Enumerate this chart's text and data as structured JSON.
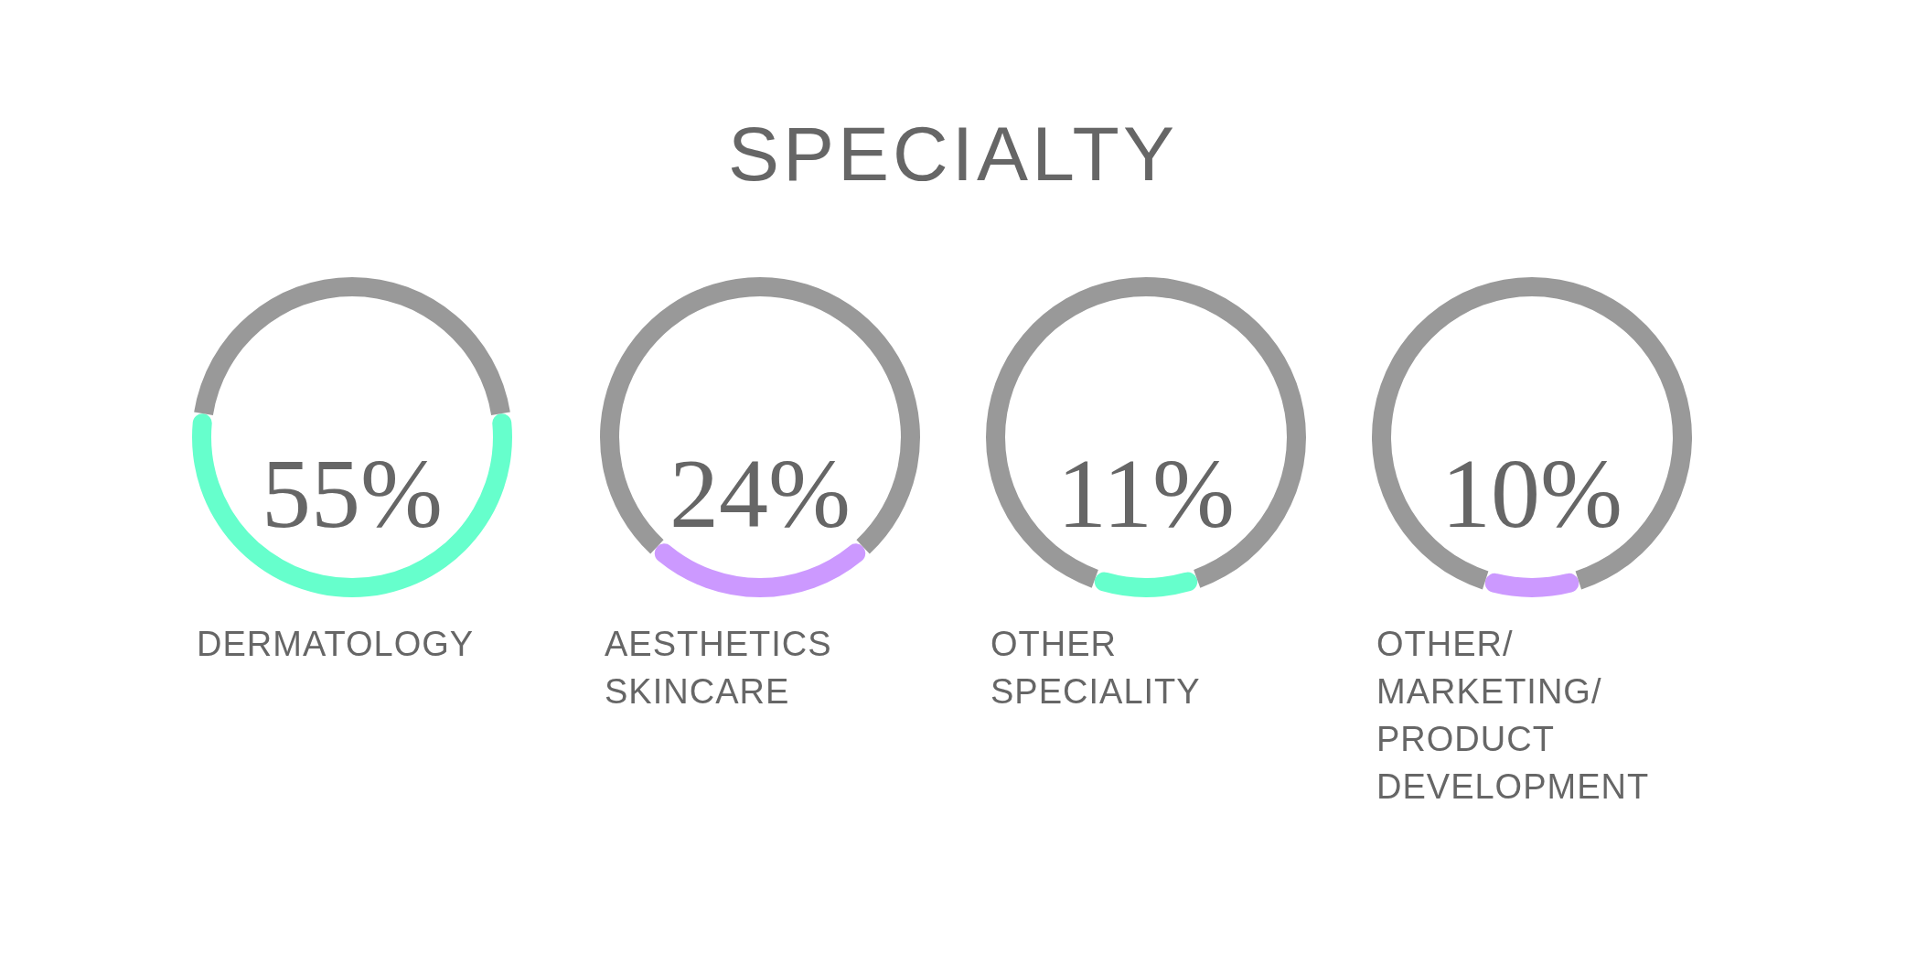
{
  "chart_data": [
    {
      "type": "donut",
      "title": "SPECIALTY",
      "categories": [
        "DERMATOLOGY",
        null
      ],
      "values": [
        55,
        45
      ],
      "colors": [
        "#66ffcc",
        "#999999"
      ],
      "value_labels": [
        "55%",
        null
      ],
      "legend": false
    },
    {
      "type": "donut",
      "categories": [
        "AESTHETICS SKINCARE",
        null
      ],
      "values": [
        24,
        76
      ],
      "colors": [
        "#cc99ff",
        "#999999"
      ],
      "value_labels": [
        "24%",
        null
      ],
      "legend": false
    },
    {
      "type": "donut",
      "categories": [
        "OTHER SPECIALITY",
        null
      ],
      "values": [
        11,
        89
      ],
      "colors": [
        "#66ffcc",
        "#999999"
      ],
      "value_labels": [
        "11%",
        null
      ],
      "legend": false
    },
    {
      "type": "donut",
      "categories": [
        "OTHER/ MARKETING/ PRODUCT DEVELOPMENT",
        null
      ],
      "values": [
        10,
        90
      ],
      "colors": [
        "#cc99ff",
        "#999999"
      ],
      "value_labels": [
        "10%",
        null
      ],
      "legend": false
    }
  ]
}
